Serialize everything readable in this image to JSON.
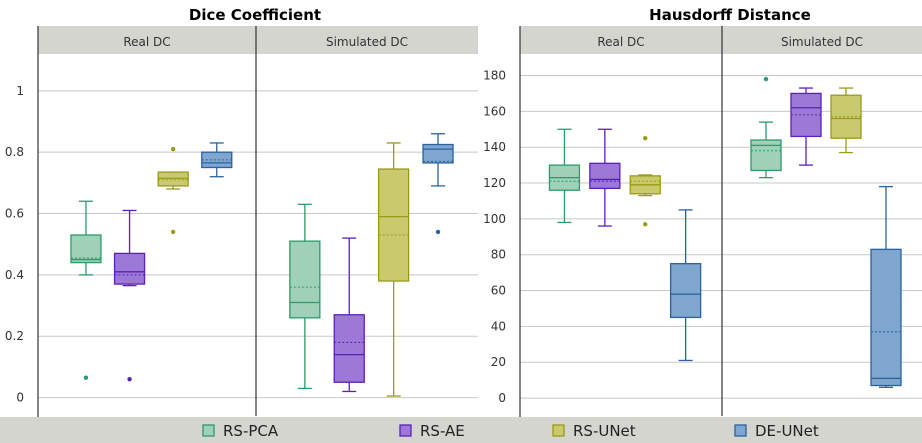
{
  "legend": [
    {
      "label": "RS-PCA",
      "fill": "#9fd0b8",
      "stroke": "#2e9a6a"
    },
    {
      "label": "RS-AE",
      "fill": "#9c79d6",
      "stroke": "#5b20b8"
    },
    {
      "label": "RS-UNet",
      "fill": "#c9c96e",
      "stroke": "#9a9a1a"
    },
    {
      "label": "DE-UNet",
      "fill": "#7ea6cf",
      "stroke": "#2a62a0"
    }
  ],
  "chart_data": [
    {
      "type": "box",
      "title": "Dice Coefficient",
      "ylim": [
        -0.06,
        1.12
      ],
      "yticks": [
        0,
        0.2,
        0.4,
        0.6,
        0.8,
        1
      ],
      "ytick_labels": [
        "0",
        "0.2",
        "0.4",
        "0.6",
        "0.8",
        "1"
      ],
      "grid": true,
      "facets": [
        {
          "label": "Real DC",
          "boxes": [
            {
              "series": "RS-PCA",
              "whislo": 0.4,
              "q1": 0.44,
              "med": 0.45,
              "mean": 0.455,
              "q3": 0.53,
              "whishi": 0.64,
              "fliers": [
                0.065
              ]
            },
            {
              "series": "RS-AE",
              "whislo": 0.365,
              "q1": 0.37,
              "med": 0.41,
              "mean": 0.4,
              "q3": 0.47,
              "whishi": 0.61,
              "fliers": [
                0.06
              ]
            },
            {
              "series": "RS-UNet",
              "whislo": 0.68,
              "q1": 0.69,
              "med": 0.715,
              "mean": 0.71,
              "q3": 0.735,
              "whishi": 0.735,
              "fliers": [
                0.81,
                0.54
              ]
            },
            {
              "series": "DE-UNet",
              "whislo": 0.72,
              "q1": 0.75,
              "med": 0.765,
              "mean": 0.775,
              "q3": 0.8,
              "whishi": 0.83,
              "fliers": []
            }
          ]
        },
        {
          "label": "Simulated DC",
          "boxes": [
            {
              "series": "RS-PCA",
              "whislo": 0.03,
              "q1": 0.26,
              "med": 0.31,
              "mean": 0.36,
              "q3": 0.51,
              "whishi": 0.63,
              "fliers": []
            },
            {
              "series": "RS-AE",
              "whislo": 0.02,
              "q1": 0.05,
              "med": 0.14,
              "mean": 0.18,
              "q3": 0.27,
              "whishi": 0.52,
              "fliers": []
            },
            {
              "series": "RS-UNet",
              "whislo": 0.005,
              "q1": 0.38,
              "med": 0.59,
              "mean": 0.53,
              "q3": 0.745,
              "whishi": 0.83,
              "fliers": []
            },
            {
              "series": "DE-UNet",
              "whislo": 0.69,
              "q1": 0.765,
              "med": 0.81,
              "mean": 0.77,
              "q3": 0.825,
              "whishi": 0.86,
              "fliers": [
                0.54
              ]
            }
          ]
        }
      ]
    },
    {
      "type": "box",
      "title": "Hausdorff Distance",
      "ylim": [
        -10,
        192
      ],
      "yticks": [
        0,
        20,
        40,
        60,
        80,
        100,
        120,
        140,
        160,
        180
      ],
      "ytick_labels": [
        "0",
        "20",
        "40",
        "60",
        "80",
        "100",
        "120",
        "140",
        "160",
        "180"
      ],
      "grid": true,
      "facets": [
        {
          "label": "Real DC",
          "boxes": [
            {
              "series": "RS-PCA",
              "whislo": 98,
              "q1": 116,
              "med": 123,
              "mean": 121,
              "q3": 130,
              "whishi": 150,
              "fliers": []
            },
            {
              "series": "RS-AE",
              "whislo": 96,
              "q1": 117,
              "med": 122,
              "mean": 121,
              "q3": 131,
              "whishi": 150,
              "fliers": []
            },
            {
              "series": "RS-UNet",
              "whislo": 113,
              "q1": 114,
              "med": 119,
              "mean": 121,
              "q3": 124,
              "whishi": 124.5,
              "fliers": [
                145,
                97
              ]
            },
            {
              "series": "DE-UNet",
              "whislo": 21,
              "q1": 45,
              "med": 58,
              "mean": 58,
              "q3": 75,
              "whishi": 105,
              "fliers": []
            }
          ]
        },
        {
          "label": "Simulated DC",
          "boxes": [
            {
              "series": "RS-PCA",
              "whislo": 123,
              "q1": 127,
              "med": 141,
              "mean": 138,
              "q3": 144,
              "whishi": 154,
              "fliers": [
                178
              ]
            },
            {
              "series": "RS-AE",
              "whislo": 130,
              "q1": 146,
              "med": 162,
              "mean": 158,
              "q3": 170,
              "whishi": 173,
              "fliers": []
            },
            {
              "series": "RS-UNet",
              "whislo": 137,
              "q1": 145,
              "med": 156,
              "mean": 157,
              "q3": 169,
              "whishi": 173,
              "fliers": []
            },
            {
              "series": "DE-UNet",
              "whislo": 6,
              "q1": 7,
              "med": 11,
              "mean": 37,
              "q3": 83,
              "whishi": 118,
              "fliers": []
            }
          ]
        }
      ]
    }
  ]
}
